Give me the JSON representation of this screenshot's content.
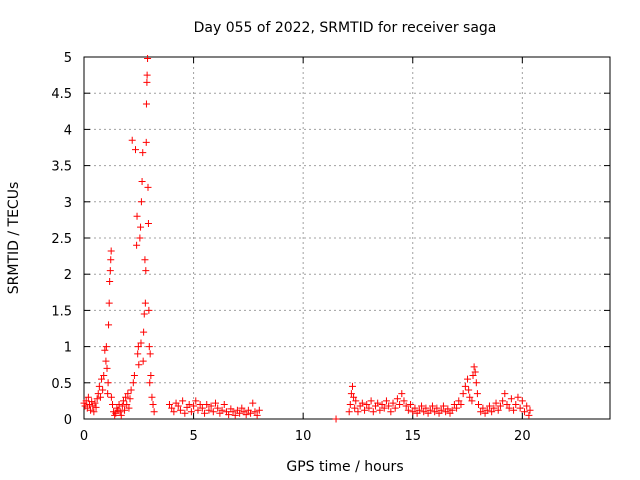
{
  "chart_data": {
    "type": "scatter",
    "title": "Day 055 of 2022, SRMTID for receiver saga",
    "xlabel": "GPS time / hours",
    "ylabel": "SRMTID / TECUs",
    "xlim": [
      0,
      24
    ],
    "ylim": [
      0,
      5
    ],
    "x_ticks": [
      0,
      5,
      10,
      15,
      20
    ],
    "x_tick_labels": [
      "0",
      "5",
      "10",
      "15",
      "20"
    ],
    "y_ticks": [
      0,
      0.5,
      1,
      1.5,
      2,
      2.5,
      3,
      3.5,
      4,
      4.5,
      5
    ],
    "y_tick_labels": [
      "0",
      "0.5",
      "1",
      "1.5",
      "2",
      "2.5",
      "3",
      "3.5",
      "4",
      "4.5",
      "5"
    ],
    "grid": true,
    "marker": "+",
    "series": [
      {
        "name": "SRMTID",
        "color": "#ff0000",
        "points": [
          [
            0.0,
            0.22
          ],
          [
            0.05,
            0.18
          ],
          [
            0.1,
            0.25
          ],
          [
            0.15,
            0.15
          ],
          [
            0.2,
            0.3
          ],
          [
            0.25,
            0.2
          ],
          [
            0.3,
            0.12
          ],
          [
            0.35,
            0.24
          ],
          [
            0.4,
            0.18
          ],
          [
            0.45,
            0.1
          ],
          [
            0.5,
            0.22
          ],
          [
            0.55,
            0.16
          ],
          [
            0.6,
            0.28
          ],
          [
            0.65,
            0.35
          ],
          [
            0.7,
            0.45
          ],
          [
            0.75,
            0.3
          ],
          [
            0.8,
            0.55
          ],
          [
            0.85,
            0.4
          ],
          [
            0.9,
            0.6
          ],
          [
            0.95,
            0.95
          ],
          [
            1.0,
            0.8
          ],
          [
            1.02,
            1.0
          ],
          [
            1.05,
            0.7
          ],
          [
            1.08,
            0.35
          ],
          [
            1.1,
            0.5
          ],
          [
            1.12,
            1.3
          ],
          [
            1.15,
            1.6
          ],
          [
            1.17,
            1.9
          ],
          [
            1.2,
            2.05
          ],
          [
            1.22,
            2.2
          ],
          [
            1.24,
            2.32
          ],
          [
            1.25,
            0.3
          ],
          [
            1.3,
            0.2
          ],
          [
            1.35,
            0.1
          ],
          [
            1.4,
            0.05
          ],
          [
            1.45,
            0.08
          ],
          [
            1.5,
            0.15
          ],
          [
            1.55,
            0.12
          ],
          [
            1.6,
            0.2
          ],
          [
            1.65,
            0.1
          ],
          [
            1.7,
            0.05
          ],
          [
            1.75,
            0.18
          ],
          [
            1.8,
            0.25
          ],
          [
            1.85,
            0.12
          ],
          [
            1.9,
            0.3
          ],
          [
            1.95,
            0.2
          ],
          [
            2.0,
            0.35
          ],
          [
            2.05,
            0.15
          ],
          [
            2.1,
            0.28
          ],
          [
            2.15,
            0.4
          ],
          [
            2.2,
            3.85
          ],
          [
            2.25,
            0.5
          ],
          [
            2.3,
            0.6
          ],
          [
            2.35,
            3.72
          ],
          [
            2.4,
            2.4
          ],
          [
            2.42,
            2.8
          ],
          [
            2.45,
            0.9
          ],
          [
            2.48,
            1.0
          ],
          [
            2.5,
            0.75
          ],
          [
            2.55,
            2.5
          ],
          [
            2.58,
            2.65
          ],
          [
            2.6,
            1.05
          ],
          [
            2.62,
            3.0
          ],
          [
            2.65,
            3.28
          ],
          [
            2.68,
            3.68
          ],
          [
            2.7,
            0.8
          ],
          [
            2.72,
            1.2
          ],
          [
            2.75,
            1.45
          ],
          [
            2.78,
            2.2
          ],
          [
            2.8,
            1.6
          ],
          [
            2.82,
            2.05
          ],
          [
            2.84,
            3.82
          ],
          [
            2.85,
            4.35
          ],
          [
            2.87,
            4.65
          ],
          [
            2.88,
            4.75
          ],
          [
            2.9,
            4.98
          ],
          [
            2.92,
            3.2
          ],
          [
            2.94,
            2.7
          ],
          [
            2.96,
            1.5
          ],
          [
            2.98,
            1.0
          ],
          [
            3.0,
            0.5
          ],
          [
            3.02,
            0.9
          ],
          [
            3.05,
            0.6
          ],
          [
            3.1,
            0.3
          ],
          [
            3.15,
            0.2
          ],
          [
            3.2,
            0.1
          ],
          [
            3.9,
            0.2
          ],
          [
            4.0,
            0.15
          ],
          [
            4.1,
            0.1
          ],
          [
            4.2,
            0.22
          ],
          [
            4.3,
            0.18
          ],
          [
            4.4,
            0.12
          ],
          [
            4.5,
            0.25
          ],
          [
            4.6,
            0.08
          ],
          [
            4.7,
            0.16
          ],
          [
            4.8,
            0.2
          ],
          [
            4.9,
            0.1
          ],
          [
            5.0,
            0.18
          ],
          [
            5.1,
            0.25
          ],
          [
            5.2,
            0.12
          ],
          [
            5.3,
            0.2
          ],
          [
            5.4,
            0.15
          ],
          [
            5.5,
            0.08
          ],
          [
            5.6,
            0.2
          ],
          [
            5.7,
            0.12
          ],
          [
            5.8,
            0.18
          ],
          [
            5.9,
            0.1
          ],
          [
            6.0,
            0.22
          ],
          [
            6.1,
            0.15
          ],
          [
            6.2,
            0.08
          ],
          [
            6.3,
            0.12
          ],
          [
            6.4,
            0.2
          ],
          [
            6.5,
            0.1
          ],
          [
            6.6,
            0.06
          ],
          [
            6.7,
            0.14
          ],
          [
            6.8,
            0.1
          ],
          [
            6.9,
            0.05
          ],
          [
            7.0,
            0.12
          ],
          [
            7.1,
            0.08
          ],
          [
            7.2,
            0.15
          ],
          [
            7.3,
            0.1
          ],
          [
            7.4,
            0.06
          ],
          [
            7.5,
            0.12
          ],
          [
            7.6,
            0.08
          ],
          [
            7.7,
            0.22
          ],
          [
            7.8,
            0.1
          ],
          [
            7.9,
            0.05
          ],
          [
            8.0,
            0.12
          ],
          [
            11.5,
            0.0
          ],
          [
            12.1,
            0.1
          ],
          [
            12.15,
            0.2
          ],
          [
            12.2,
            0.35
          ],
          [
            12.25,
            0.45
          ],
          [
            12.3,
            0.3
          ],
          [
            12.35,
            0.15
          ],
          [
            12.4,
            0.25
          ],
          [
            12.5,
            0.1
          ],
          [
            12.6,
            0.18
          ],
          [
            12.7,
            0.22
          ],
          [
            12.8,
            0.12
          ],
          [
            12.9,
            0.2
          ],
          [
            13.0,
            0.15
          ],
          [
            13.1,
            0.25
          ],
          [
            13.2,
            0.1
          ],
          [
            13.3,
            0.18
          ],
          [
            13.4,
            0.22
          ],
          [
            13.5,
            0.12
          ],
          [
            13.6,
            0.2
          ],
          [
            13.7,
            0.15
          ],
          [
            13.8,
            0.25
          ],
          [
            13.9,
            0.18
          ],
          [
            14.0,
            0.1
          ],
          [
            14.1,
            0.22
          ],
          [
            14.2,
            0.15
          ],
          [
            14.3,
            0.28
          ],
          [
            14.4,
            0.2
          ],
          [
            14.5,
            0.35
          ],
          [
            14.6,
            0.25
          ],
          [
            14.7,
            0.18
          ],
          [
            14.8,
            0.12
          ],
          [
            14.9,
            0.2
          ],
          [
            15.0,
            0.1
          ],
          [
            15.1,
            0.15
          ],
          [
            15.2,
            0.08
          ],
          [
            15.3,
            0.12
          ],
          [
            15.4,
            0.18
          ],
          [
            15.5,
            0.1
          ],
          [
            15.6,
            0.15
          ],
          [
            15.7,
            0.08
          ],
          [
            15.8,
            0.12
          ],
          [
            15.9,
            0.18
          ],
          [
            16.0,
            0.1
          ],
          [
            16.1,
            0.15
          ],
          [
            16.2,
            0.08
          ],
          [
            16.3,
            0.12
          ],
          [
            16.4,
            0.18
          ],
          [
            16.5,
            0.1
          ],
          [
            16.6,
            0.14
          ],
          [
            16.7,
            0.08
          ],
          [
            16.8,
            0.12
          ],
          [
            16.9,
            0.2
          ],
          [
            17.0,
            0.15
          ],
          [
            17.1,
            0.25
          ],
          [
            17.2,
            0.2
          ],
          [
            17.3,
            0.35
          ],
          [
            17.4,
            0.45
          ],
          [
            17.5,
            0.55
          ],
          [
            17.55,
            0.4
          ],
          [
            17.6,
            0.3
          ],
          [
            17.7,
            0.25
          ],
          [
            17.75,
            0.6
          ],
          [
            17.8,
            0.72
          ],
          [
            17.85,
            0.65
          ],
          [
            17.9,
            0.5
          ],
          [
            17.95,
            0.35
          ],
          [
            18.0,
            0.2
          ],
          [
            18.1,
            0.1
          ],
          [
            18.2,
            0.15
          ],
          [
            18.3,
            0.08
          ],
          [
            18.4,
            0.12
          ],
          [
            18.5,
            0.18
          ],
          [
            18.6,
            0.1
          ],
          [
            18.7,
            0.15
          ],
          [
            18.8,
            0.22
          ],
          [
            18.9,
            0.12
          ],
          [
            19.0,
            0.18
          ],
          [
            19.1,
            0.25
          ],
          [
            19.2,
            0.35
          ],
          [
            19.3,
            0.2
          ],
          [
            19.4,
            0.15
          ],
          [
            19.5,
            0.28
          ],
          [
            19.6,
            0.12
          ],
          [
            19.7,
            0.2
          ],
          [
            19.8,
            0.3
          ],
          [
            19.9,
            0.15
          ],
          [
            20.0,
            0.25
          ],
          [
            20.1,
            0.1
          ],
          [
            20.2,
            0.18
          ],
          [
            20.3,
            0.05
          ],
          [
            20.35,
            0.12
          ]
        ]
      }
    ]
  }
}
